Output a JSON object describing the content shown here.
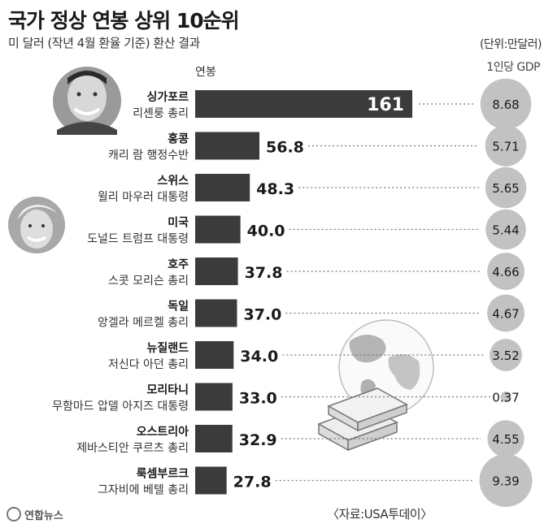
{
  "header": {
    "title": "국가 정상 연봉 상위 10순위",
    "subtitle": "미 달러 (작년 4월 환율 기준) 환산 결과",
    "unit": "(단위:만달러)",
    "salary_label": "연봉",
    "gdp_label": "1인당 GDP"
  },
  "footer": {
    "logo": "연합뉴스",
    "source": "〈자료:USA투데이〉"
  },
  "colors": {
    "bar": "#3b3b3b",
    "circle": "#c2c2c2",
    "dots": "#7a7a7a"
  },
  "chart_data": {
    "type": "bar",
    "title": "국가 정상 연봉 상위 10순위",
    "subtitle": "미 달러 (작년 4월 환율 기준) 환산 결과",
    "unit": "만달러",
    "categories": [
      "싱가포르",
      "홍콩",
      "스위스",
      "미국",
      "호주",
      "독일",
      "뉴질랜드",
      "모리타니",
      "오스트리아",
      "룩셈부르크"
    ],
    "leaders": [
      "리셴룽 총리",
      "캐리 람 행정수반",
      "윌리 마우러 대통령",
      "도널드 트럼프 대통령",
      "스콧 모리슨 총리",
      "앙겔라 메르켈 총리",
      "저신다 아던 총리",
      "무함마드 압델 아지즈 대통령",
      "제바스티안 쿠르츠 총리",
      "그자비에 베텔 총리"
    ],
    "series": [
      {
        "name": "연봉",
        "values": [
          161,
          56.8,
          48.3,
          40.0,
          37.8,
          37.0,
          34.0,
          33.0,
          32.9,
          27.8
        ],
        "labels": [
          "161",
          "56.8",
          "48.3",
          "40.0",
          "37.8",
          "37.0",
          "34.0",
          "33.0",
          "32.9",
          "27.8"
        ]
      },
      {
        "name": "1인당 GDP",
        "values": [
          8.68,
          5.71,
          5.65,
          5.44,
          4.66,
          4.67,
          3.52,
          0.37,
          4.55,
          9.39
        ],
        "labels": [
          "8.68",
          "5.71",
          "5.65",
          "5.44",
          "4.66",
          "4.67",
          "3.52",
          "0.37",
          "4.55",
          "9.39"
        ]
      }
    ]
  }
}
